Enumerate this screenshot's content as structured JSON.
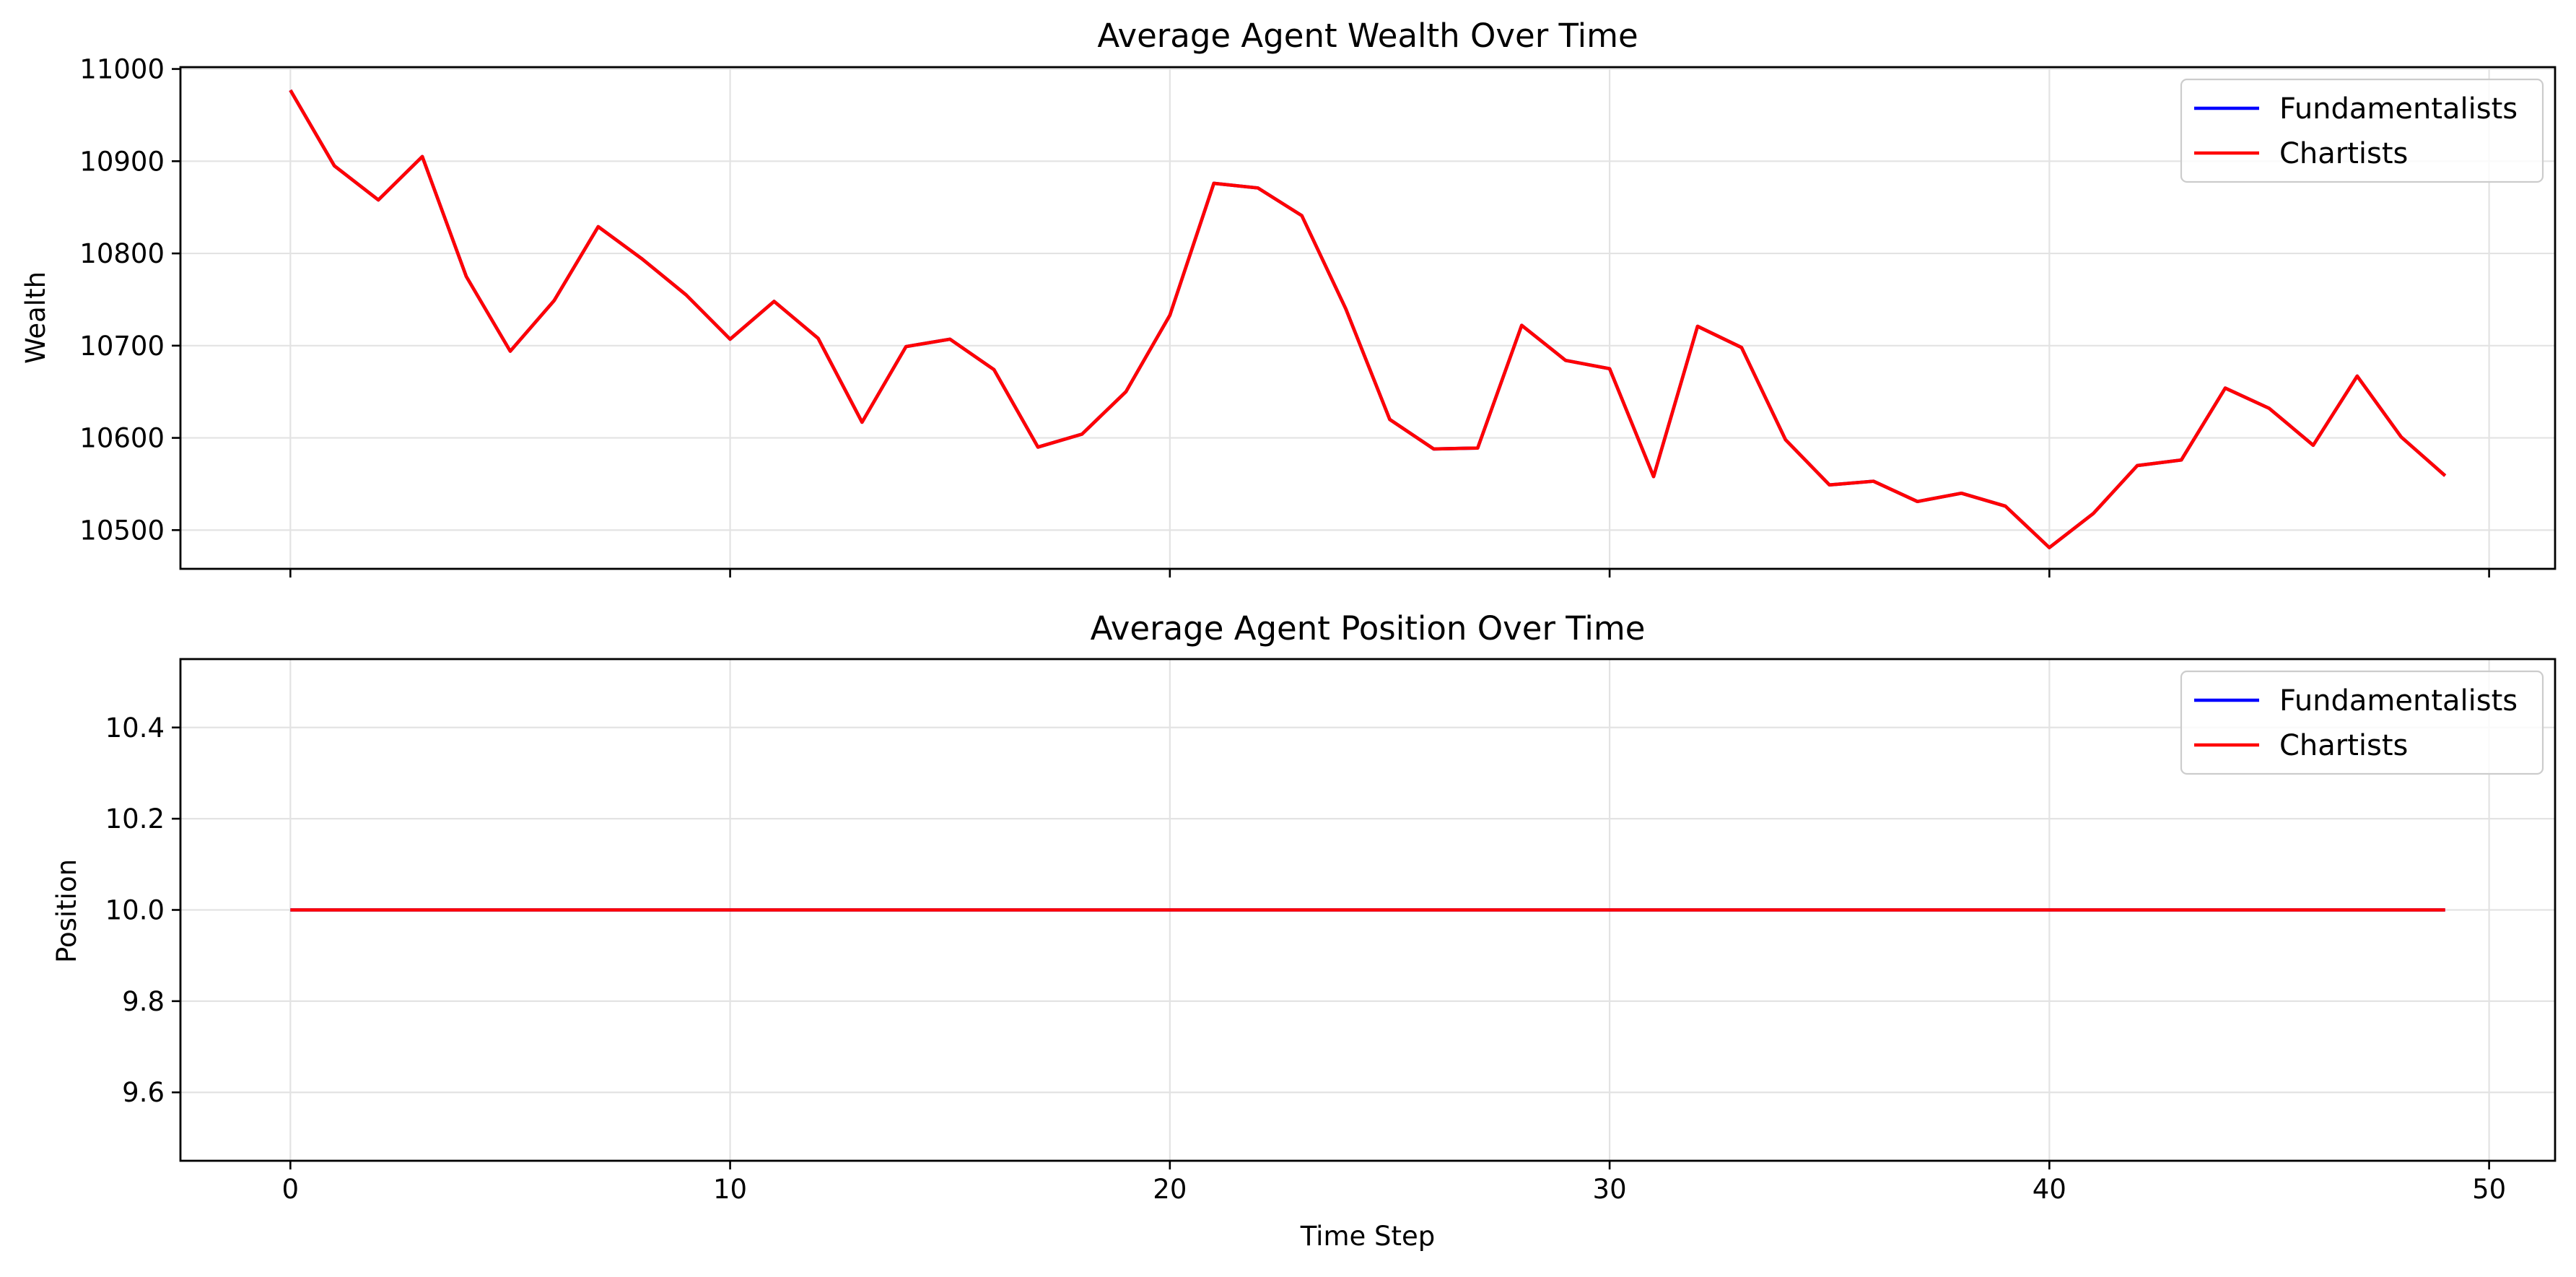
{
  "chart_data": [
    {
      "type": "line",
      "title": "Average Agent Wealth Over Time",
      "xlabel": "",
      "ylabel": "Wealth",
      "xlim": [
        -2.5,
        51.5
      ],
      "ylim": [
        10458,
        11002
      ],
      "xticks": [
        0,
        10,
        20,
        30,
        40,
        50
      ],
      "xtick_labels_visible": false,
      "yticks": [
        10500,
        10600,
        10700,
        10800,
        10900,
        11000
      ],
      "grid": true,
      "legend_position": "top-right",
      "x": [
        0,
        1,
        2,
        3,
        4,
        5,
        6,
        7,
        8,
        9,
        10,
        11,
        12,
        13,
        14,
        15,
        16,
        17,
        18,
        19,
        20,
        21,
        22,
        23,
        24,
        25,
        26,
        27,
        28,
        29,
        30,
        31,
        32,
        33,
        34,
        35,
        36,
        37,
        38,
        39,
        40,
        41,
        42,
        43,
        44,
        45,
        46,
        47,
        48,
        49
      ],
      "series": [
        {
          "name": "Fundamentalists",
          "color": "#0000ff",
          "values": [
            10977,
            10895,
            10858,
            10905,
            10775,
            10694,
            10749,
            10829,
            10794,
            10755,
            10707,
            10748,
            10708,
            10617,
            10699,
            10707,
            10674,
            10590,
            10604,
            10650,
            10733,
            10876,
            10871,
            10841,
            10740,
            10620,
            10588,
            10589,
            10722,
            10684,
            10675,
            10558,
            10721,
            10698,
            10598,
            10549,
            10553,
            10531,
            10540,
            10526,
            10481,
            10518,
            10570,
            10576,
            10654,
            10632,
            10592,
            10667,
            10601,
            10559
          ]
        },
        {
          "name": "Chartists",
          "color": "#ff0000",
          "values": [
            10977,
            10895,
            10858,
            10905,
            10775,
            10694,
            10749,
            10829,
            10794,
            10755,
            10707,
            10748,
            10708,
            10617,
            10699,
            10707,
            10674,
            10590,
            10604,
            10650,
            10733,
            10876,
            10871,
            10841,
            10740,
            10620,
            10588,
            10589,
            10722,
            10684,
            10675,
            10558,
            10721,
            10698,
            10598,
            10549,
            10553,
            10531,
            10540,
            10526,
            10481,
            10518,
            10570,
            10576,
            10654,
            10632,
            10592,
            10667,
            10601,
            10559
          ]
        }
      ]
    },
    {
      "type": "line",
      "title": "Average Agent Position Over Time",
      "xlabel": "Time Step",
      "ylabel": "Position",
      "xlim": [
        -2.5,
        51.5
      ],
      "ylim": [
        9.45,
        10.55
      ],
      "xticks": [
        0,
        10,
        20,
        30,
        40,
        50
      ],
      "xtick_labels_visible": true,
      "yticks": [
        9.6,
        9.8,
        10.0,
        10.2,
        10.4
      ],
      "grid": true,
      "legend_position": "top-right",
      "x": [
        0,
        1,
        2,
        3,
        4,
        5,
        6,
        7,
        8,
        9,
        10,
        11,
        12,
        13,
        14,
        15,
        16,
        17,
        18,
        19,
        20,
        21,
        22,
        23,
        24,
        25,
        26,
        27,
        28,
        29,
        30,
        31,
        32,
        33,
        34,
        35,
        36,
        37,
        38,
        39,
        40,
        41,
        42,
        43,
        44,
        45,
        46,
        47,
        48,
        49
      ],
      "series": [
        {
          "name": "Fundamentalists",
          "color": "#0000ff",
          "values": [
            10,
            10,
            10,
            10,
            10,
            10,
            10,
            10,
            10,
            10,
            10,
            10,
            10,
            10,
            10,
            10,
            10,
            10,
            10,
            10,
            10,
            10,
            10,
            10,
            10,
            10,
            10,
            10,
            10,
            10,
            10,
            10,
            10,
            10,
            10,
            10,
            10,
            10,
            10,
            10,
            10,
            10,
            10,
            10,
            10,
            10,
            10,
            10,
            10,
            10
          ]
        },
        {
          "name": "Chartists",
          "color": "#ff0000",
          "values": [
            10,
            10,
            10,
            10,
            10,
            10,
            10,
            10,
            10,
            10,
            10,
            10,
            10,
            10,
            10,
            10,
            10,
            10,
            10,
            10,
            10,
            10,
            10,
            10,
            10,
            10,
            10,
            10,
            10,
            10,
            10,
            10,
            10,
            10,
            10,
            10,
            10,
            10,
            10,
            10,
            10,
            10,
            10,
            10,
            10,
            10,
            10,
            10,
            10,
            10
          ]
        }
      ]
    }
  ]
}
